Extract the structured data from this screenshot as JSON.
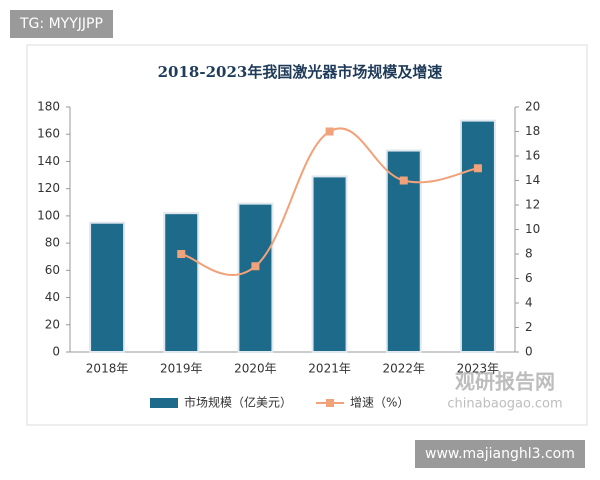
{
  "chart_data": {
    "type": "bar_line",
    "title": "2018-2023年我国激光器市场规模及增速",
    "categories": [
      "2018年",
      "2019年",
      "2020年",
      "2021年",
      "2022年",
      "2023年"
    ],
    "series": [
      {
        "name": "市场规模（亿美元）",
        "type": "bar",
        "color": "#1d6a8b",
        "values": [
          95,
          102,
          109,
          129,
          148,
          170
        ]
      },
      {
        "name": "增速（%）",
        "type": "line",
        "axis": "y2",
        "color": "#f2a27a",
        "values": [
          null,
          8,
          7,
          18,
          14,
          15
        ]
      }
    ],
    "ylim": [
      0,
      180
    ],
    "yticks": [
      0,
      20,
      40,
      60,
      80,
      100,
      120,
      140,
      160,
      180
    ],
    "y2lim": [
      0,
      20
    ],
    "y2ticks": [
      0,
      2,
      4,
      6,
      8,
      10,
      12,
      14,
      16,
      18,
      20
    ],
    "grid": false
  },
  "watermarks": {
    "top": "TG: MYYJJPP",
    "logo": "观研报告网",
    "logo_url": "chinabaogao.com",
    "bottom": "www.majianghl3.com"
  }
}
